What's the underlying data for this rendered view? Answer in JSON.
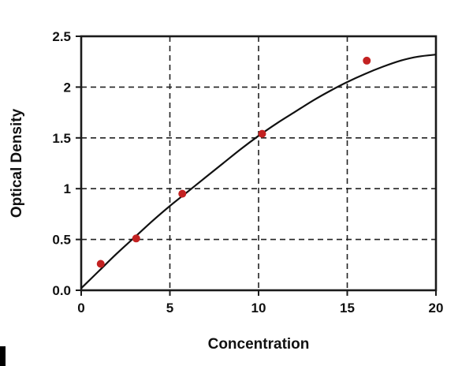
{
  "figure": {
    "kind": "standard-curve-plot",
    "background": "#ffffff"
  },
  "chart_data": {
    "type": "scatter",
    "title": "",
    "xlabel": "Concentration",
    "ylabel": "Optical Density",
    "xlim": [
      0,
      20
    ],
    "ylim": [
      0,
      2.5
    ],
    "grid": "dashed",
    "legend": "none",
    "frame_color": "#1a1a1a",
    "grid_color": "#222222",
    "x_tick_values": [
      0,
      5,
      10,
      15,
      20
    ],
    "x_tick_labels": [
      "0",
      "5",
      "10",
      "15",
      "20"
    ],
    "y_tick_values": [
      0,
      0.5,
      1,
      1.5,
      2,
      2.5
    ],
    "y_tick_labels": [
      "0.0",
      "0.5",
      "1",
      "1.5",
      "2",
      "2.5"
    ],
    "x_gridlines": [
      5,
      10,
      15
    ],
    "y_gridlines": [
      0.5,
      1,
      1.5,
      2
    ],
    "points": {
      "name": "standard-points",
      "color": "#c32222",
      "x": [
        1.1,
        3.1,
        5.7,
        10.2,
        16.1
      ],
      "y": [
        0.26,
        0.51,
        0.95,
        1.54,
        2.26
      ]
    },
    "curve": {
      "name": "fitted-curve",
      "color": "#111111",
      "x": [
        0,
        1,
        2,
        3,
        4,
        5,
        6,
        7,
        8,
        9,
        10,
        11,
        12,
        13,
        14,
        15,
        16,
        17,
        18,
        19,
        20
      ],
      "y": [
        0.02,
        0.19,
        0.36,
        0.52,
        0.68,
        0.83,
        0.97,
        1.11,
        1.25,
        1.39,
        1.52,
        1.64,
        1.75,
        1.86,
        1.96,
        2.05,
        2.13,
        2.2,
        2.26,
        2.3,
        2.32
      ]
    }
  }
}
